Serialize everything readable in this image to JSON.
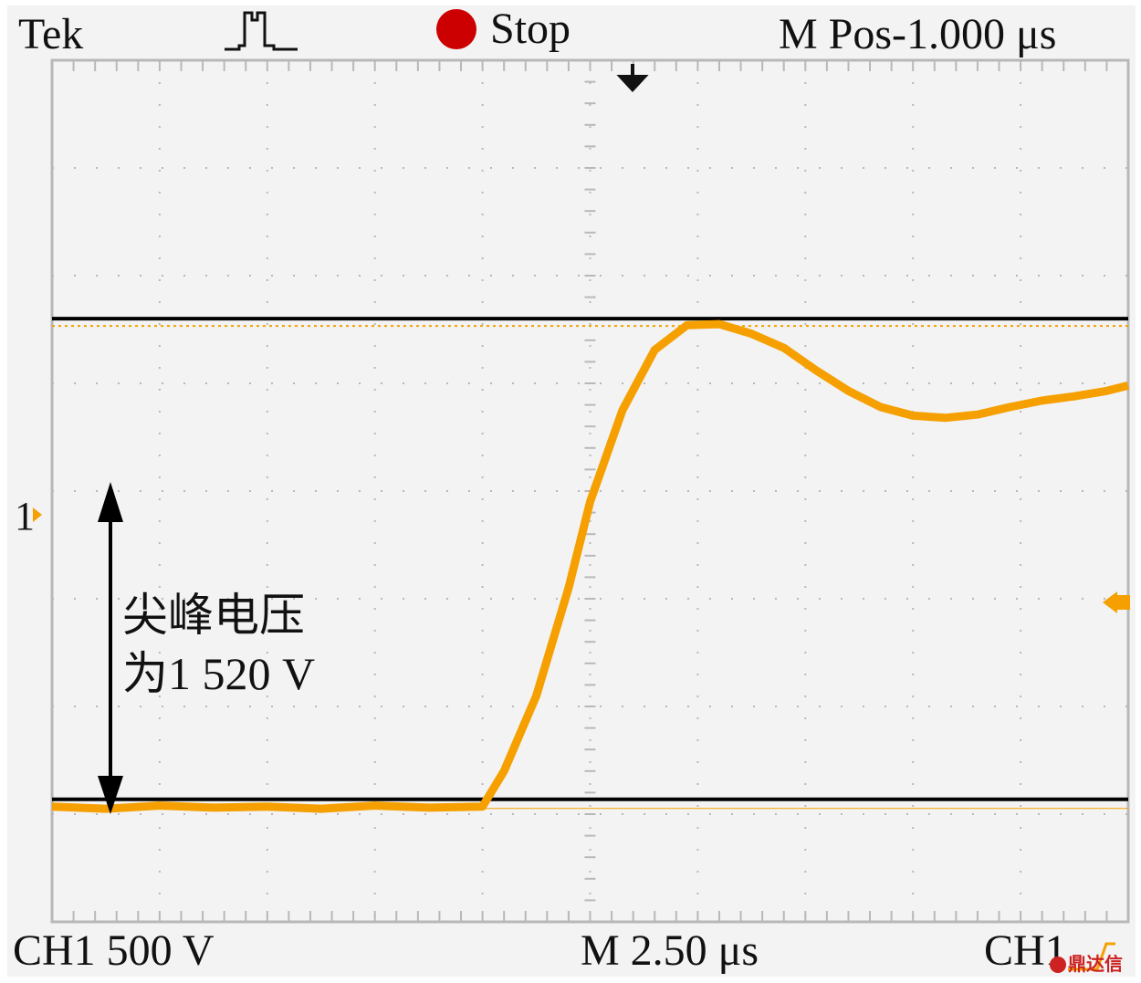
{
  "header": {
    "brand": "Tek",
    "acquisition_state": "Stop",
    "horizontal_position": "M Pos-1.000 μs"
  },
  "footer": {
    "channel_scale": "CH1 500 V",
    "timebase": "M 2.50 μs",
    "trigger_source": "CH1"
  },
  "channel_marker_label": "1",
  "annotation": {
    "line1": "尖峰电压",
    "line2": "为1 520 V"
  },
  "watermark": "鼎达信",
  "icons": {
    "acquisition_mode": "pulse-waveform-icon",
    "run_state": "red-stop-dot-icon",
    "trigger_position": "down-arrow-icon",
    "trigger_slope": "rising-edge-icon"
  },
  "colors": {
    "trace": "#f5a000",
    "stop_indicator": "#cc0000",
    "graticule": "#b8b8b8",
    "screen_background": "#f3f3f3",
    "marker_lines": "#000000"
  },
  "chart_data": {
    "type": "line",
    "title": "",
    "xlabel": "",
    "ylabel": "",
    "x_units": "divisions",
    "y_units": "divisions",
    "x_range": [
      0,
      10
    ],
    "y_range": [
      -4,
      4
    ],
    "grid": true,
    "series": [
      {
        "x": [
          0,
          0.5,
          1,
          1.5,
          2,
          2.5,
          3,
          3.5,
          4.0,
          4.2,
          4.5,
          4.8,
          5.0,
          5.3,
          5.6,
          5.9,
          6.2,
          6.5,
          6.8,
          7.1,
          7.4,
          7.7,
          8.0,
          8.3,
          8.6,
          8.9,
          9.2,
          9.5,
          9.8,
          10
        ],
        "values": [
          -2.93,
          -2.95,
          -2.92,
          -2.94,
          -2.93,
          -2.95,
          -2.92,
          -2.94,
          -2.93,
          -2.6,
          -1.9,
          -0.9,
          -0.1,
          0.75,
          1.31,
          1.54,
          1.55,
          1.46,
          1.33,
          1.12,
          0.93,
          0.78,
          0.7,
          0.68,
          0.71,
          0.78,
          0.84,
          0.88,
          0.93,
          0.98
        ]
      }
    ],
    "markers": {
      "ground_reference_y": -2.93,
      "peak_y": 1.55,
      "peak_voltage_v": 1520,
      "volts_per_division": 500,
      "seconds_per_division_us": 2.5
    }
  }
}
